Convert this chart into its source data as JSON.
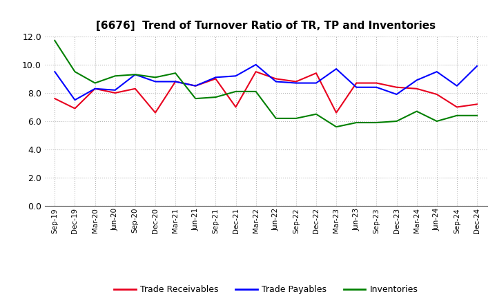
{
  "title": "[6676]  Trend of Turnover Ratio of TR, TP and Inventories",
  "labels": [
    "Sep-19",
    "Dec-19",
    "Mar-20",
    "Jun-20",
    "Sep-20",
    "Dec-20",
    "Mar-21",
    "Jun-21",
    "Sep-21",
    "Dec-21",
    "Mar-22",
    "Jun-22",
    "Sep-22",
    "Dec-22",
    "Mar-23",
    "Jun-23",
    "Sep-23",
    "Dec-23",
    "Mar-24",
    "Jun-24",
    "Sep-24",
    "Dec-24"
  ],
  "trade_receivables": [
    7.6,
    6.9,
    8.3,
    8.0,
    8.3,
    6.6,
    8.8,
    8.5,
    9.0,
    7.0,
    9.5,
    9.0,
    8.8,
    9.4,
    6.6,
    8.7,
    8.7,
    8.4,
    8.3,
    7.9,
    7.0,
    7.2
  ],
  "trade_payables": [
    9.5,
    7.5,
    8.3,
    8.2,
    9.3,
    8.8,
    8.8,
    8.5,
    9.1,
    9.2,
    10.0,
    8.8,
    8.7,
    8.7,
    9.7,
    8.4,
    8.4,
    7.9,
    8.9,
    9.5,
    8.5,
    9.9
  ],
  "inventories": [
    11.7,
    9.5,
    8.7,
    9.2,
    9.3,
    9.1,
    9.4,
    7.6,
    7.7,
    8.1,
    8.1,
    6.2,
    6.2,
    6.5,
    5.6,
    5.9,
    5.9,
    6.0,
    6.7,
    6.0,
    6.4,
    6.4
  ],
  "tr_color": "#e8001e",
  "tp_color": "#0000ff",
  "inv_color": "#008000",
  "ylim": [
    0,
    12.0
  ],
  "yticks": [
    0.0,
    2.0,
    4.0,
    6.0,
    8.0,
    10.0,
    12.0
  ],
  "legend_labels": [
    "Trade Receivables",
    "Trade Payables",
    "Inventories"
  ],
  "background_color": "#ffffff",
  "grid_color": "#bbbbbb"
}
